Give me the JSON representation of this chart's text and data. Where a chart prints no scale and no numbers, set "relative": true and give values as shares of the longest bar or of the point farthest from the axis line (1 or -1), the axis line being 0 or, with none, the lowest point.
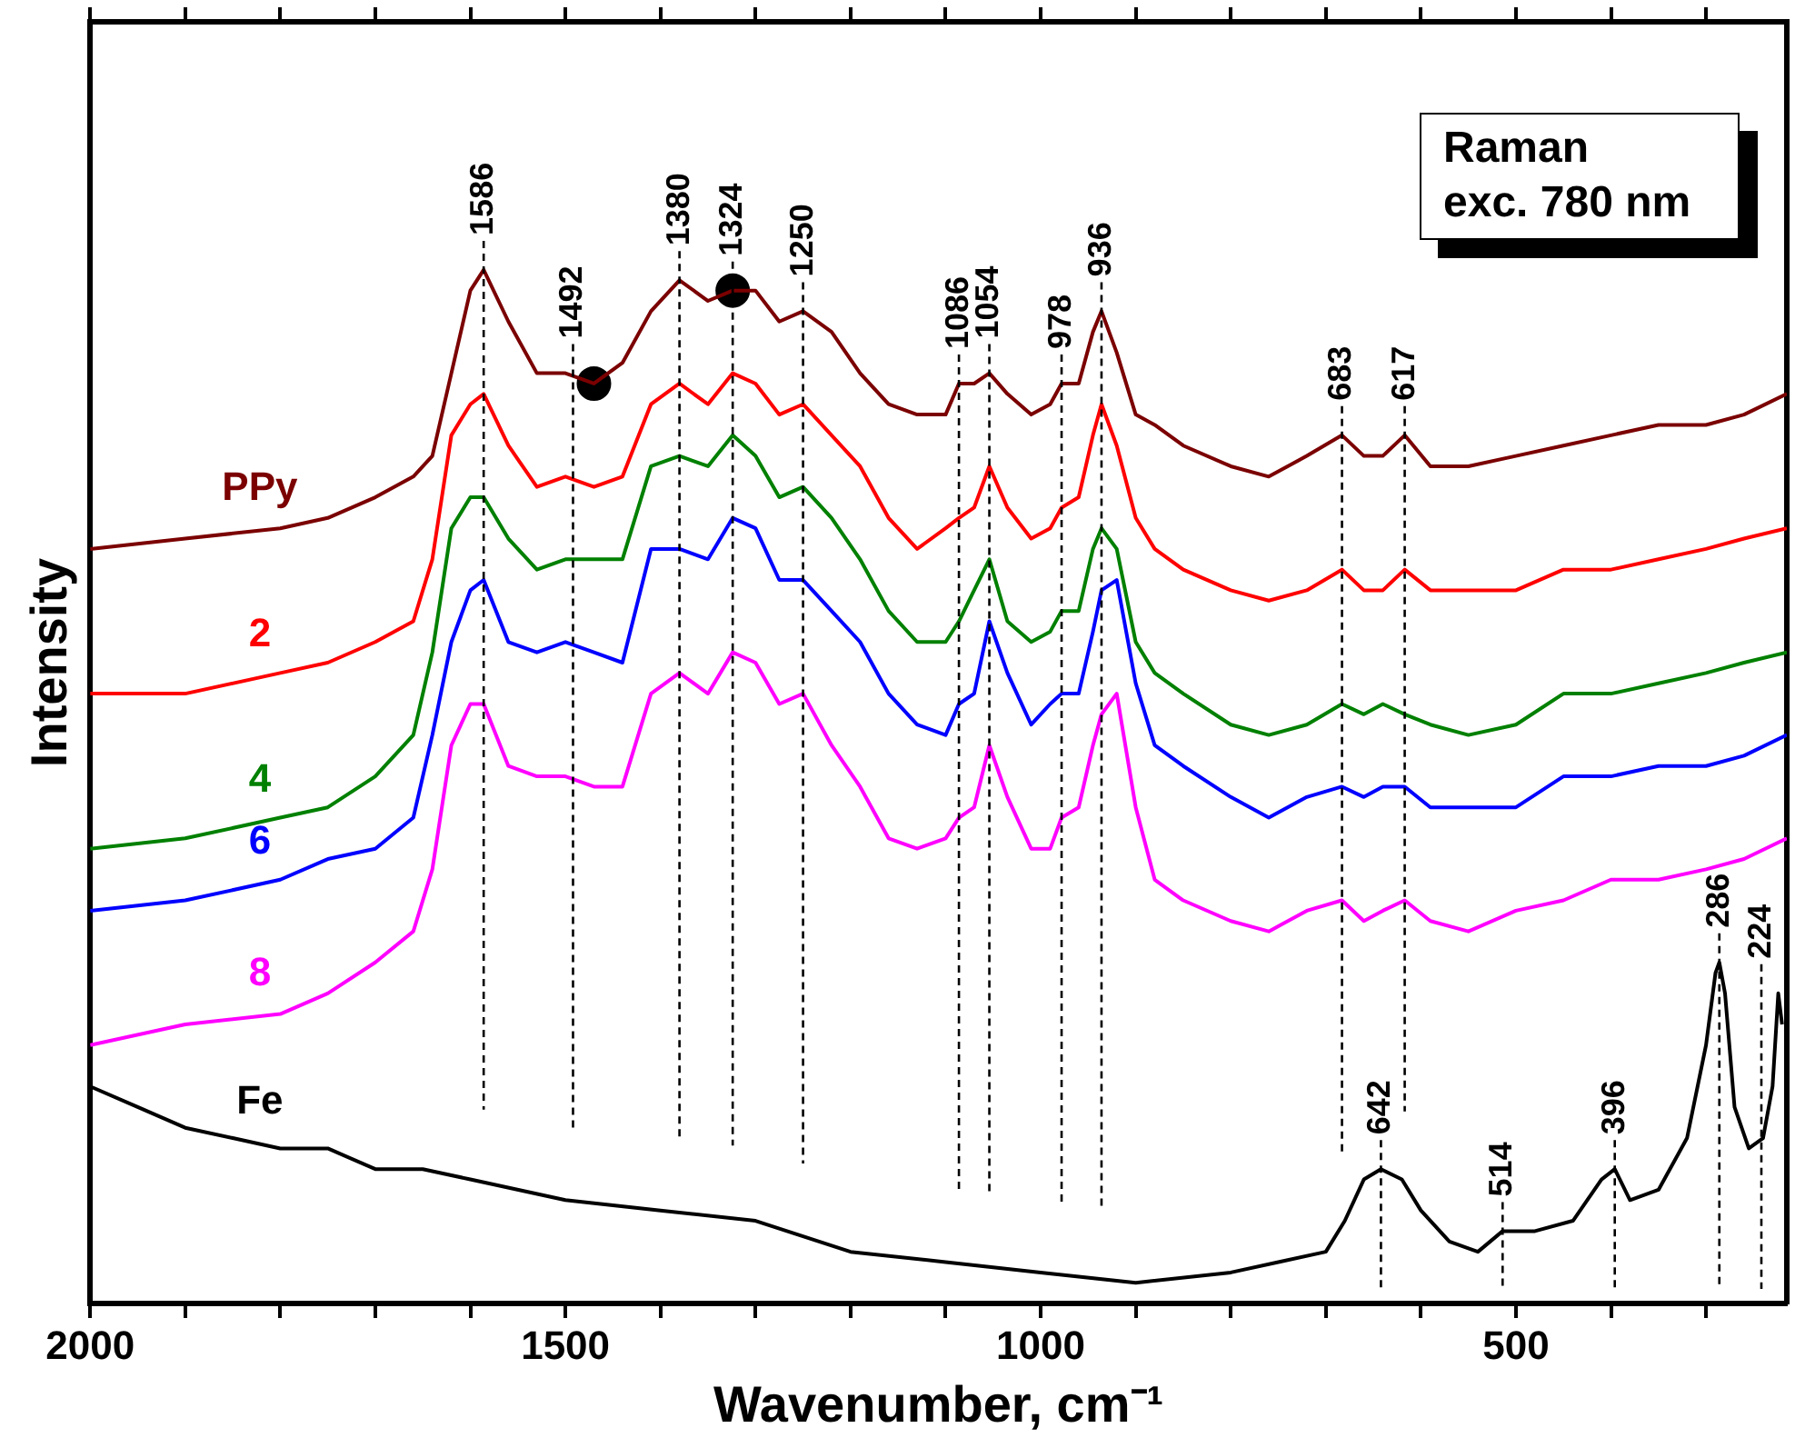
{
  "chart_data": {
    "type": "line",
    "relative": true,
    "xlabel": "Wavenumber, cm⁻¹",
    "ylabel": "Intensity",
    "xlim": [
      2000,
      215
    ],
    "xticks": [
      2000,
      {
        "value": 1900,
        "label": null
      },
      {
        "value": 1800,
        "label": null
      },
      {
        "value": 1700,
        "label": null
      },
      {
        "value": 1600,
        "label": null
      },
      1500,
      {
        "value": 1400,
        "label": null
      },
      {
        "value": 1300,
        "label": null
      },
      {
        "value": 1200,
        "label": null
      },
      {
        "value": 1100,
        "label": null
      },
      1000,
      {
        "value": 900,
        "label": null
      },
      {
        "value": 800,
        "label": null
      },
      {
        "value": 700,
        "label": null
      },
      {
        "value": 600,
        "label": null
      },
      500,
      {
        "value": 400,
        "label": null
      },
      {
        "value": 300,
        "label": null
      }
    ],
    "tick_labels": "x",
    "grid": false,
    "legend": false,
    "marker": "none",
    "x": [
      2000,
      1900,
      1800,
      1750,
      1700,
      1660,
      1640,
      1620,
      1600,
      1586,
      1560,
      1530,
      1500,
      1470,
      1440,
      1410,
      1380,
      1350,
      1324,
      1300,
      1275,
      1250,
      1220,
      1190,
      1160,
      1130,
      1100,
      1086,
      1070,
      1054,
      1035,
      1010,
      990,
      978,
      960,
      945,
      936,
      920,
      900,
      880,
      850,
      800,
      760,
      720,
      683,
      660,
      640,
      617,
      590,
      550,
      500,
      450,
      400,
      350,
      300,
      260,
      215
    ],
    "series": [
      {
        "name": "PPy",
        "color": "#7b0000",
        "values": [
          0.73,
          0.74,
          0.75,
          0.76,
          0.78,
          0.8,
          0.82,
          0.9,
          0.98,
          1.0,
          0.95,
          0.9,
          0.9,
          0.89,
          0.91,
          0.96,
          0.99,
          0.97,
          0.98,
          0.98,
          0.95,
          0.96,
          0.94,
          0.9,
          0.87,
          0.86,
          0.86,
          0.89,
          0.89,
          0.9,
          0.88,
          0.86,
          0.87,
          0.89,
          0.89,
          0.94,
          0.96,
          0.92,
          0.86,
          0.85,
          0.83,
          0.81,
          0.8,
          0.82,
          0.84,
          0.82,
          0.82,
          0.84,
          0.81,
          0.81,
          0.82,
          0.83,
          0.84,
          0.85,
          0.85,
          0.86,
          0.88
        ]
      },
      {
        "name": "2",
        "color": "#ff0000",
        "values": [
          0.59,
          0.59,
          0.61,
          0.62,
          0.64,
          0.66,
          0.72,
          0.84,
          0.87,
          0.88,
          0.83,
          0.79,
          0.8,
          0.79,
          0.8,
          0.87,
          0.89,
          0.87,
          0.9,
          0.89,
          0.86,
          0.87,
          0.84,
          0.81,
          0.76,
          0.73,
          0.75,
          0.76,
          0.77,
          0.81,
          0.77,
          0.74,
          0.75,
          0.77,
          0.78,
          0.84,
          0.87,
          0.83,
          0.76,
          0.73,
          0.71,
          0.69,
          0.68,
          0.69,
          0.71,
          0.69,
          0.69,
          0.71,
          0.69,
          0.69,
          0.69,
          0.71,
          0.71,
          0.72,
          0.73,
          0.74,
          0.75
        ]
      },
      {
        "name": "4",
        "color": "#008000",
        "values": [
          0.44,
          0.45,
          0.47,
          0.48,
          0.51,
          0.55,
          0.63,
          0.75,
          0.78,
          0.78,
          0.74,
          0.71,
          0.72,
          0.72,
          0.72,
          0.81,
          0.82,
          0.81,
          0.84,
          0.82,
          0.78,
          0.79,
          0.76,
          0.72,
          0.67,
          0.64,
          0.64,
          0.66,
          0.69,
          0.72,
          0.66,
          0.64,
          0.65,
          0.67,
          0.67,
          0.73,
          0.75,
          0.73,
          0.64,
          0.61,
          0.59,
          0.56,
          0.55,
          0.56,
          0.58,
          0.57,
          0.58,
          0.57,
          0.56,
          0.55,
          0.56,
          0.59,
          0.59,
          0.6,
          0.61,
          0.62,
          0.63
        ]
      },
      {
        "name": "6",
        "color": "#0000ff",
        "values": [
          0.38,
          0.39,
          0.41,
          0.43,
          0.44,
          0.47,
          0.55,
          0.64,
          0.69,
          0.7,
          0.64,
          0.63,
          0.64,
          0.63,
          0.62,
          0.73,
          0.73,
          0.72,
          0.76,
          0.75,
          0.7,
          0.7,
          0.67,
          0.64,
          0.59,
          0.56,
          0.55,
          0.58,
          0.59,
          0.66,
          0.61,
          0.56,
          0.58,
          0.59,
          0.59,
          0.65,
          0.69,
          0.7,
          0.6,
          0.54,
          0.52,
          0.49,
          0.47,
          0.49,
          0.5,
          0.49,
          0.5,
          0.5,
          0.48,
          0.48,
          0.48,
          0.51,
          0.51,
          0.52,
          0.52,
          0.53,
          0.55
        ]
      },
      {
        "name": "8",
        "color": "#ff00ff",
        "values": [
          0.25,
          0.27,
          0.28,
          0.3,
          0.33,
          0.36,
          0.42,
          0.54,
          0.58,
          0.58,
          0.52,
          0.51,
          0.51,
          0.5,
          0.5,
          0.59,
          0.61,
          0.59,
          0.63,
          0.62,
          0.58,
          0.59,
          0.54,
          0.5,
          0.45,
          0.44,
          0.45,
          0.47,
          0.48,
          0.54,
          0.49,
          0.44,
          0.44,
          0.47,
          0.48,
          0.54,
          0.57,
          0.59,
          0.48,
          0.41,
          0.39,
          0.37,
          0.36,
          0.38,
          0.39,
          0.37,
          0.38,
          0.39,
          0.37,
          0.36,
          0.38,
          0.39,
          0.41,
          0.41,
          0.42,
          0.43,
          0.45
        ]
      },
      {
        "name": "Fe",
        "color": "#000000",
        "x": [
          2000,
          1950,
          1900,
          1850,
          1800,
          1750,
          1700,
          1650,
          1600,
          1500,
          1400,
          1300,
          1200,
          1100,
          1000,
          900,
          800,
          750,
          700,
          680,
          660,
          642,
          620,
          600,
          570,
          540,
          514,
          480,
          440,
          410,
          396,
          380,
          350,
          320,
          300,
          290,
          286,
          280,
          270,
          255,
          240,
          230,
          224,
          220
        ],
        "values": [
          0.21,
          0.19,
          0.17,
          0.16,
          0.15,
          0.15,
          0.13,
          0.13,
          0.12,
          0.1,
          0.09,
          0.08,
          0.05,
          0.04,
          0.03,
          0.02,
          0.03,
          0.04,
          0.05,
          0.08,
          0.12,
          0.13,
          0.12,
          0.09,
          0.06,
          0.05,
          0.07,
          0.07,
          0.08,
          0.12,
          0.13,
          0.1,
          0.11,
          0.16,
          0.25,
          0.32,
          0.33,
          0.3,
          0.19,
          0.15,
          0.16,
          0.21,
          0.3,
          0.27
        ]
      },
      {
        "type": "scatter",
        "marker": "circle",
        "color": "#000000",
        "x": [
          1470,
          1324
        ],
        "values": [
          0.89,
          0.98
        ]
      }
    ],
    "annotations": [
      {
        "text": "1586",
        "x": 1586,
        "y": 1.0
      },
      {
        "text": "1492",
        "x": 1492,
        "y": 0.9
      },
      {
        "text": "1380",
        "x": 1380,
        "y": 0.99
      },
      {
        "text": "1324",
        "x": 1324,
        "y": 0.98
      },
      {
        "text": "1250",
        "x": 1250,
        "y": 0.96
      },
      {
        "text": "1086",
        "x": 1086,
        "y": 0.89
      },
      {
        "text": "1054",
        "x": 1054,
        "y": 0.9
      },
      {
        "text": "978",
        "x": 978,
        "y": 0.89
      },
      {
        "text": "936",
        "x": 936,
        "y": 0.96
      },
      {
        "text": "683",
        "x": 683,
        "y": 0.84
      },
      {
        "text": "617",
        "x": 617,
        "y": 0.84
      },
      {
        "text": "642",
        "x": 642,
        "y": 0.13
      },
      {
        "text": "514",
        "x": 514,
        "y": 0.07
      },
      {
        "text": "396",
        "x": 396,
        "y": 0.13
      },
      {
        "text": "286",
        "x": 286,
        "y": 0.33
      },
      {
        "text": "224",
        "x": 224,
        "y": 0.3
      },
      "Raman exc. 780 nm"
    ]
  }
}
